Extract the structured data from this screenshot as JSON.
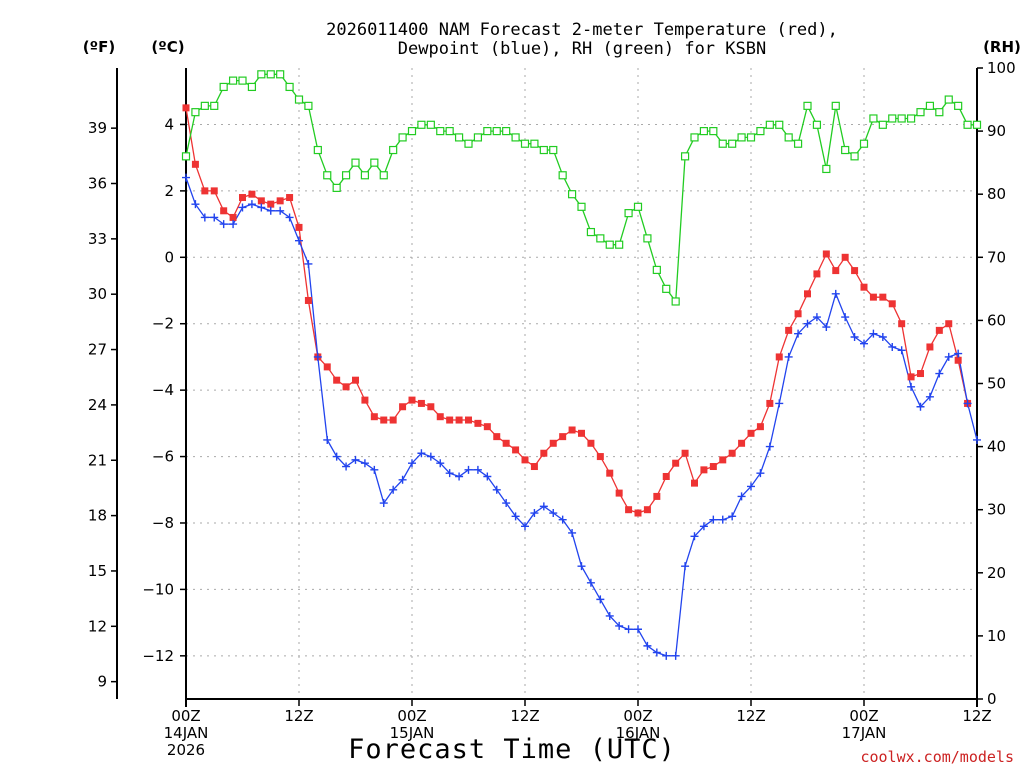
{
  "colors": {
    "temperature": "#ee3333",
    "dewpoint": "#2244ee",
    "rh": "#22cc22",
    "credit": "#cc2222",
    "grid": "#aaaaaa"
  },
  "chart_data": {
    "type": "line",
    "title_line1": "2026011400 NAM Forecast 2-meter Temperature (red),",
    "title_line2": "Dewpoint (blue), RH (green) for KSBN",
    "xlabel": "Forecast Time (UTC)",
    "credit": "coolwx.com/models",
    "left_outer_unit": "(ºF)",
    "left_inner_unit": "(ºC)",
    "right_unit": "(RH)",
    "ylim_c": [
      -13.3,
      5.7
    ],
    "ylim_rh": [
      0,
      100
    ],
    "x_range_h": [
      0,
      84
    ],
    "fahrenheit_ticks": [
      "39",
      "36",
      "33",
      "30",
      "27",
      "24",
      "21",
      "18",
      "15",
      "12",
      "9"
    ],
    "celsius_ticks": [
      "4",
      "2",
      "0",
      "−2",
      "−4",
      "−6",
      "−8",
      "−10",
      "−12"
    ],
    "rh_ticks": [
      "100",
      "90",
      "80",
      "70",
      "60",
      "50",
      "40",
      "30",
      "20",
      "10",
      "0"
    ],
    "x_ticks": [
      {
        "h": 0,
        "label": "00Z",
        "day": "14JAN",
        "year": "2026"
      },
      {
        "h": 12,
        "label": "12Z",
        "day": "",
        "year": ""
      },
      {
        "h": 24,
        "label": "00Z",
        "day": "15JAN",
        "year": ""
      },
      {
        "h": 36,
        "label": "12Z",
        "day": "",
        "year": ""
      },
      {
        "h": 48,
        "label": "00Z",
        "day": "16JAN",
        "year": ""
      },
      {
        "h": 60,
        "label": "12Z",
        "day": "",
        "year": ""
      },
      {
        "h": 72,
        "label": "00Z",
        "day": "17JAN",
        "year": ""
      },
      {
        "h": 84,
        "label": "12Z",
        "day": "",
        "year": ""
      }
    ],
    "x_hours": [
      0,
      1,
      2,
      3,
      4,
      5,
      6,
      7,
      8,
      9,
      10,
      11,
      12,
      13,
      14,
      15,
      16,
      17,
      18,
      19,
      20,
      21,
      22,
      23,
      24,
      25,
      26,
      27,
      28,
      29,
      30,
      31,
      32,
      33,
      34,
      35,
      36,
      37,
      38,
      39,
      40,
      41,
      42,
      43,
      44,
      45,
      46,
      47,
      48,
      49,
      50,
      51,
      52,
      53,
      54,
      55,
      56,
      57,
      58,
      59,
      60,
      61,
      62,
      63,
      64,
      65,
      66,
      67,
      68,
      69,
      70,
      71,
      72,
      73,
      74,
      75,
      76,
      77,
      78,
      79,
      80,
      81,
      82,
      83,
      84
    ],
    "series": [
      {
        "name": "Temperature (red)",
        "unit": "C",
        "marker": "filled-square",
        "values": [
          4.5,
          2.8,
          2.0,
          2.0,
          1.4,
          1.2,
          1.8,
          1.9,
          1.7,
          1.6,
          1.7,
          1.8,
          0.9,
          -1.3,
          -3.0,
          -3.3,
          -3.7,
          -3.9,
          -3.7,
          -4.3,
          -4.8,
          -4.9,
          -4.9,
          -4.5,
          -4.3,
          -4.4,
          -4.5,
          -4.8,
          -4.9,
          -4.9,
          -4.9,
          -5.0,
          -5.1,
          -5.4,
          -5.6,
          -5.8,
          -6.1,
          -6.3,
          -5.9,
          -5.6,
          -5.4,
          -5.2,
          -5.3,
          -5.6,
          -6.0,
          -6.5,
          -7.1,
          -7.6,
          -7.7,
          -7.6,
          -7.2,
          -6.6,
          -6.2,
          -5.9,
          -6.8,
          -6.4,
          -6.3,
          -6.1,
          -5.9,
          -5.6,
          -5.3,
          -5.1,
          -4.4,
          -3.0,
          -2.2,
          -1.7,
          -1.1,
          -0.5,
          0.1,
          -0.4,
          0.0,
          -0.4,
          -0.9,
          -1.2,
          -1.2,
          -1.4,
          -2.0,
          -3.6,
          -3.5,
          -2.7,
          -2.2,
          -2.0,
          -3.1,
          -4.4
        ],
        "ticks_note": ""
      },
      {
        "name": "Dewpoint (blue)",
        "unit": "C",
        "marker": "plus",
        "values": [
          2.4,
          1.6,
          1.2,
          1.2,
          1.0,
          1.0,
          1.5,
          1.6,
          1.5,
          1.4,
          1.4,
          1.2,
          0.5,
          -0.2,
          -3.0,
          -5.5,
          -6.0,
          -6.3,
          -6.1,
          -6.2,
          -6.4,
          -7.4,
          -7.0,
          -6.7,
          -6.2,
          -5.9,
          -6.0,
          -6.2,
          -6.5,
          -6.6,
          -6.4,
          -6.4,
          -6.6,
          -7.0,
          -7.4,
          -7.8,
          -8.1,
          -7.7,
          -7.5,
          -7.7,
          -7.9,
          -8.3,
          -9.3,
          -9.8,
          -10.3,
          -10.8,
          -11.1,
          -11.2,
          -11.2,
          -11.7,
          -11.9,
          -12.0,
          -12.0,
          -9.3,
          -8.4,
          -8.1,
          -7.9,
          -7.9,
          -7.8,
          -7.2,
          -6.9,
          -6.5,
          -5.7,
          -4.4,
          -3.0,
          -2.3,
          -2.0,
          -1.8,
          -2.1,
          -1.1,
          -1.8,
          -2.4,
          -2.6,
          -2.3,
          -2.4,
          -2.7,
          -2.8,
          -3.9,
          -4.5,
          -4.2,
          -3.5,
          -3.0,
          -2.9,
          -4.4,
          -5.5
        ],
        "ticks_note": ""
      },
      {
        "name": "RH (green)",
        "unit": "%",
        "marker": "open-square",
        "values": [
          86,
          93,
          94,
          94,
          97,
          98,
          98,
          97,
          99,
          99,
          99,
          97,
          95,
          94,
          87,
          83,
          81,
          83,
          85,
          83,
          85,
          83,
          87,
          89,
          90,
          91,
          91,
          90,
          90,
          89,
          88,
          89,
          90,
          90,
          90,
          89,
          88,
          88,
          87,
          87,
          83,
          80,
          78,
          74,
          73,
          72,
          72,
          77,
          78,
          73,
          68,
          65,
          63,
          86,
          89,
          90,
          90,
          88,
          88,
          89,
          89,
          90,
          91,
          91,
          89,
          88,
          94,
          91,
          84,
          94,
          87,
          86,
          88,
          92,
          91,
          92,
          92,
          92,
          93,
          94,
          93,
          95,
          94,
          91,
          91
        ]
      }
    ],
    "grid": true,
    "legend_placement": "none (encoded in title)"
  }
}
